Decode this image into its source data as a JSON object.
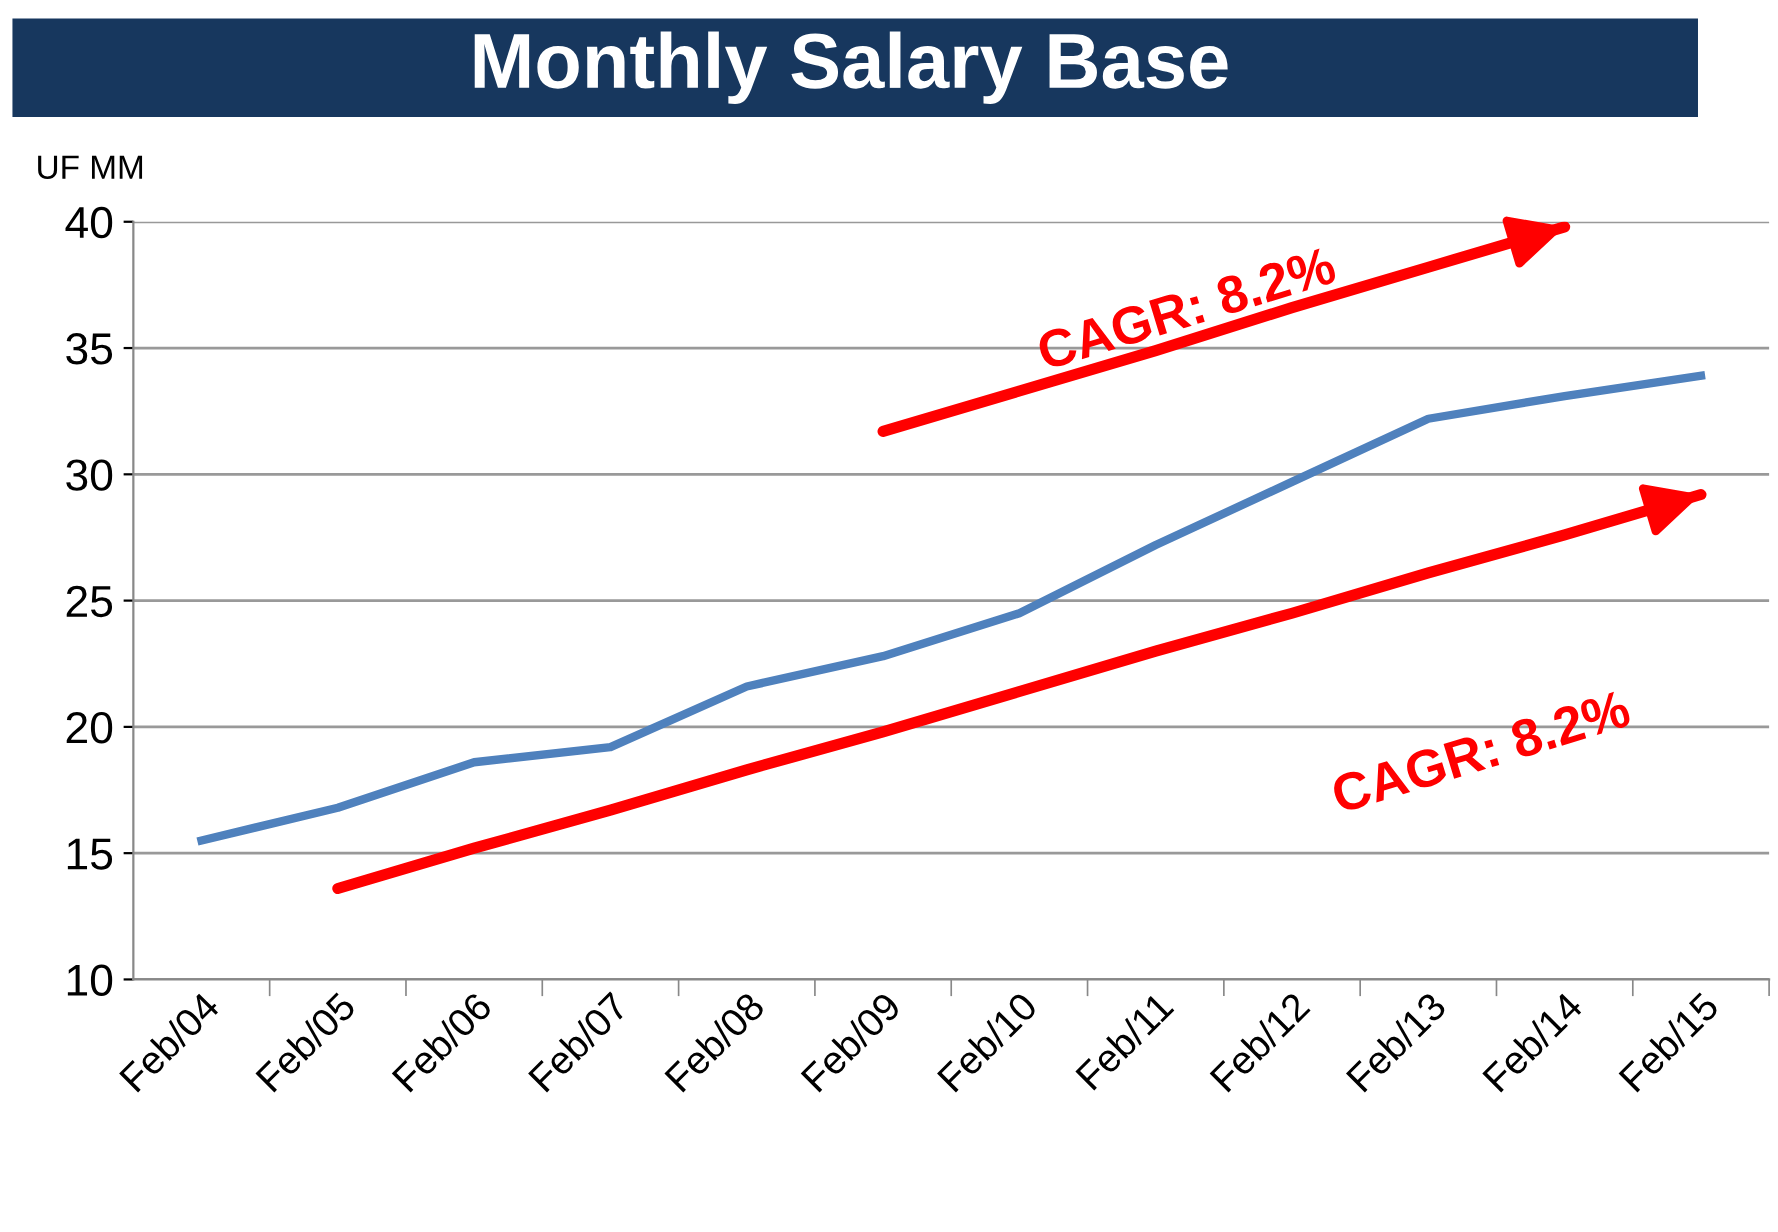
{
  "chart_data": {
    "type": "line",
    "title": "Monthly Salary Base",
    "ylabel": "UF MM",
    "categories": [
      "Feb/04",
      "Feb/05",
      "Feb/06",
      "Feb/07",
      "Feb/08",
      "Feb/09",
      "Feb/10",
      "Feb/11",
      "Feb/12",
      "Feb/13",
      "Feb/14",
      "Feb/15"
    ],
    "series": [
      {
        "color": "#4f81bd",
        "values": [
          15.5,
          16.8,
          18.6,
          19.2,
          21.6,
          22.8,
          24.5,
          27.2,
          29.7,
          32.2,
          33.1,
          33.9
        ]
      },
      {
        "type": "line",
        "color": "#ff0000",
        "values": [
          null,
          13.6,
          15.2,
          16.7,
          18.3,
          19.8,
          21.4,
          23.0,
          24.5,
          26.1,
          27.6,
          29.2
        ]
      },
      {
        "type": "line",
        "color": "#ff0000",
        "values": [
          null,
          null,
          null,
          null,
          null,
          31.7,
          33.3,
          34.9,
          36.6,
          38.2,
          39.8,
          null
        ]
      }
    ],
    "ylim": [
      10,
      40
    ],
    "yticks": [
      10,
      15,
      20,
      25,
      30,
      35,
      40
    ],
    "grid": "y",
    "line_style": "solid",
    "annotations": [
      "CAGR: 8.2%",
      "CAGR: 8.2%"
    ]
  }
}
